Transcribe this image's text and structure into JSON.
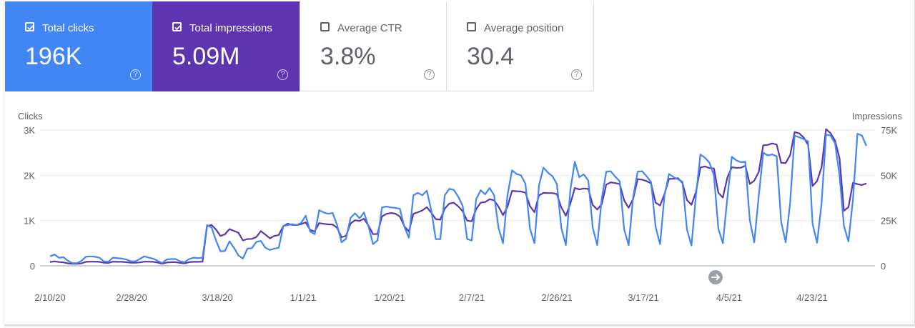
{
  "metrics": [
    {
      "label": "Total clicks",
      "value": "196K",
      "checked": true
    },
    {
      "label": "Total impressions",
      "value": "5.09M",
      "checked": true
    },
    {
      "label": "Average CTR",
      "value": "3.8%",
      "checked": false
    },
    {
      "label": "Average position",
      "value": "30.4",
      "checked": false
    }
  ],
  "help_glyph": "?",
  "colors": {
    "clicks": "#4285f4",
    "impressions": "#5e35b1"
  },
  "chart_data": {
    "type": "line",
    "left_axis_title": "Clicks",
    "right_axis_title": "Impressions",
    "left_ticks": [
      "0",
      "1K",
      "2K",
      "3K"
    ],
    "left_ylim": [
      0,
      3000
    ],
    "right_ticks": [
      "0",
      "25K",
      "50K",
      "75K"
    ],
    "right_ylim": [
      0,
      75000
    ],
    "x_tick_labels": [
      "2/10/20",
      "2/28/20",
      "3/18/20",
      "1/1/21",
      "1/20/21",
      "2/7/21",
      "2/26/21",
      "3/17/21",
      "4/5/21",
      "4/23/21"
    ],
    "grid": true,
    "series": [
      {
        "name": "Clicks",
        "axis": "left",
        "color": "#4285f4",
        "values": [
          210,
          250,
          180,
          190,
          110,
          60,
          60,
          110,
          200,
          210,
          200,
          180,
          100,
          90,
          180,
          170,
          160,
          140,
          100,
          100,
          150,
          210,
          180,
          160,
          110,
          60,
          140,
          150,
          150,
          100,
          80,
          150,
          180,
          170,
          180,
          900,
          850,
          560,
          320,
          330,
          540,
          400,
          230,
          160,
          380,
          390,
          530,
          550,
          400,
          350,
          380,
          400,
          880,
          900,
          920,
          900,
          950,
          1110,
          760,
          700,
          1230,
          1180,
          1150,
          1170,
          900,
          520,
          600,
          1060,
          1160,
          1050,
          1180,
          870,
          480,
          560,
          1290,
          1310,
          1290,
          1280,
          1260,
          860,
          620,
          1560,
          1610,
          1560,
          1660,
          1220,
          590,
          590,
          1560,
          1700,
          1680,
          1530,
          1320,
          590,
          560,
          1470,
          1670,
          1580,
          1720,
          1560,
          830,
          500,
          1570,
          2110,
          2030,
          2000,
          1810,
          820,
          500,
          1770,
          2170,
          2060,
          1980,
          1810,
          830,
          460,
          1680,
          2300,
          1960,
          2020,
          1880,
          840,
          460,
          1490,
          2080,
          2090,
          1970,
          1870,
          800,
          460,
          1520,
          2080,
          2090,
          1980,
          1850,
          860,
          480,
          1560,
          2030,
          1960,
          1910,
          1860,
          800,
          450,
          1560,
          2460,
          2390,
          2280,
          2000,
          820,
          500,
          1500,
          2410,
          2330,
          2290,
          2300,
          1010,
          520,
          1540,
          2500,
          2440,
          2460,
          2420,
          970,
          520,
          1390,
          2880,
          2840,
          2800,
          2750,
          930,
          510,
          1380,
          2900,
          2880,
          2710,
          2000,
          880,
          540,
          1460,
          2920,
          2880,
          2650
        ]
      },
      {
        "name": "Impressions",
        "axis": "right",
        "color": "#5e35b1",
        "values": [
          2100,
          2500,
          2100,
          1900,
          1400,
          1100,
          1100,
          1400,
          2200,
          2300,
          2300,
          2200,
          1700,
          1600,
          2300,
          2200,
          2200,
          2000,
          1700,
          1700,
          1900,
          2300,
          2300,
          2200,
          1800,
          1200,
          1800,
          2000,
          2000,
          1600,
          1400,
          2000,
          2200,
          2200,
          2300,
          21800,
          22600,
          20000,
          16500,
          17400,
          20300,
          19300,
          18300,
          14000,
          14800,
          14900,
          15900,
          19200,
          17300,
          15200,
          16500,
          17000,
          22000,
          23300,
          22600,
          22500,
          23100,
          24000,
          19800,
          19000,
          23600,
          23200,
          22900,
          22800,
          21000,
          15800,
          16600,
          23400,
          25200,
          24800,
          26000,
          22200,
          17500,
          17600,
          27300,
          28700,
          29200,
          28800,
          27200,
          21800,
          19000,
          28700,
          29600,
          30600,
          32400,
          29300,
          25800,
          25500,
          31600,
          34400,
          34900,
          32900,
          30100,
          25000,
          24600,
          31400,
          34900,
          35200,
          36800,
          36200,
          32600,
          28000,
          32700,
          41400,
          41200,
          41100,
          40400,
          33000,
          29600,
          38900,
          40300,
          40200,
          40200,
          39600,
          32200,
          27700,
          34400,
          43000,
          42200,
          42700,
          42500,
          33600,
          31100,
          34000,
          44900,
          46100,
          45700,
          45200,
          36100,
          32100,
          36900,
          47900,
          47600,
          46800,
          45500,
          34900,
          33300,
          39700,
          48000,
          48100,
          48400,
          45700,
          36300,
          33700,
          40800,
          54300,
          54900,
          54000,
          53800,
          40400,
          37700,
          48800,
          54500,
          54100,
          54200,
          55300,
          45200,
          47000,
          51800,
          66600,
          66800,
          67600,
          67000,
          56900,
          56800,
          61100,
          73900,
          73200,
          70900,
          66900,
          44100,
          46800,
          54400,
          75500,
          73300,
          69200,
          59500,
          30400,
          32400,
          45900,
          45100,
          44600,
          45500
        ]
      }
    ]
  }
}
